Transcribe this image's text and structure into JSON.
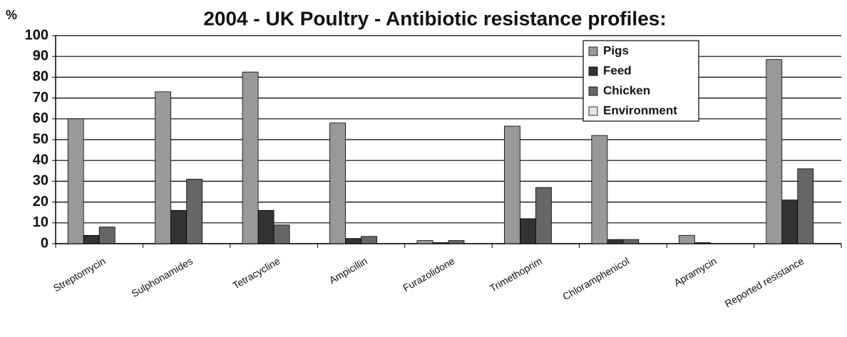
{
  "chart_data": {
    "type": "bar",
    "title": "2004 - UK Poultry - Antibiotic resistance profiles:",
    "y_label": "%",
    "categories": [
      "Streptomycin",
      "Sulphonamides",
      "Tetracycline",
      "Ampicillin",
      "Furazolidone",
      "Trimethoprim",
      "Chloramphenicol",
      "Apramycin",
      "Reported resistance"
    ],
    "series": [
      {
        "name": "Pigs",
        "color": "#999999",
        "values": [
          60,
          73,
          82.5,
          58,
          1.5,
          56.5,
          52,
          4,
          88.5
        ]
      },
      {
        "name": "Feed",
        "color": "#333333",
        "values": [
          4,
          16,
          16,
          2.5,
          0.5,
          12,
          2,
          0.5,
          21
        ]
      },
      {
        "name": "Chicken",
        "color": "#666666",
        "values": [
          8,
          31,
          9,
          3.5,
          1.5,
          27,
          2,
          0,
          36
        ]
      },
      {
        "name": "Environment",
        "color": "#e4e4e4",
        "values": [
          0,
          0,
          0,
          0,
          0,
          0,
          0,
          0,
          0
        ]
      }
    ],
    "ylim": [
      0,
      100
    ],
    "yticks": [
      0,
      10,
      20,
      30,
      40,
      50,
      60,
      70,
      80,
      90,
      100
    ],
    "grid": true,
    "legend": "upper right"
  }
}
